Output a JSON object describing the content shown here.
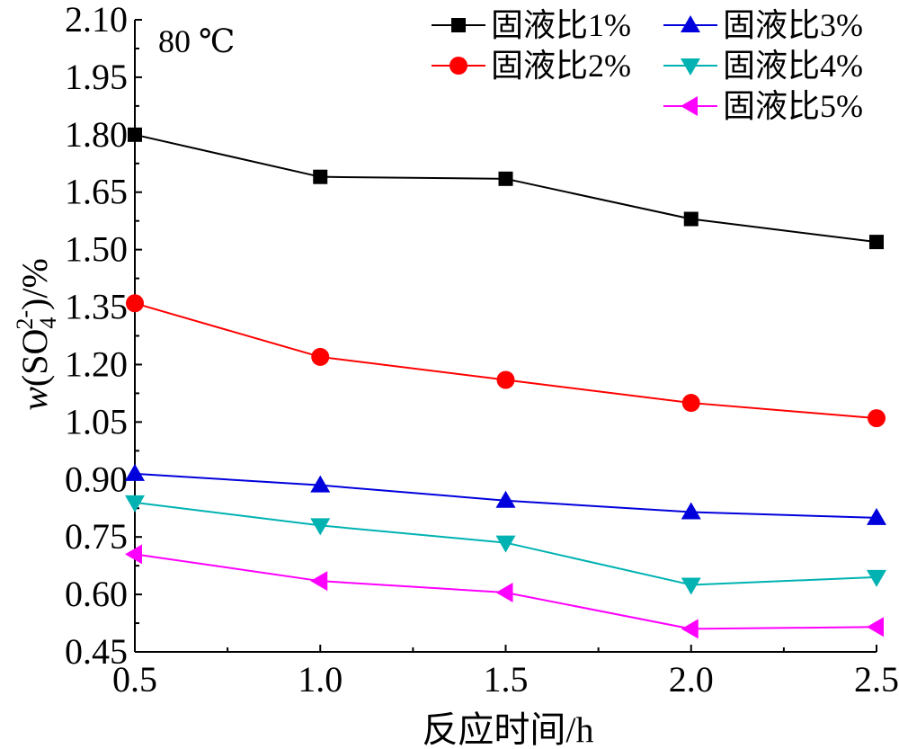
{
  "chart_data": {
    "type": "line",
    "annotation": "80 ℃",
    "xlabel": "反应时间/h",
    "ylabel": {
      "prefix": "w(SO",
      "sub": "4",
      "sup": "2-",
      "suffix": ")/%"
    },
    "x": [
      0.5,
      1.0,
      1.5,
      2.0,
      2.5
    ],
    "xlim": [
      0.5,
      2.5
    ],
    "ylim": [
      0.45,
      2.1
    ],
    "xticks": [
      "0.5",
      "1.0",
      "1.5",
      "2.0",
      "2.5"
    ],
    "yticks": [
      "0.45",
      "0.60",
      "0.75",
      "0.90",
      "1.05",
      "1.20",
      "1.35",
      "1.50",
      "1.65",
      "1.80",
      "1.95",
      "2.10"
    ],
    "grid": false,
    "legend_position": "top-right",
    "series": [
      {
        "name": "固液比1%",
        "color": "#000000",
        "marker": "square",
        "values": [
          1.8,
          1.69,
          1.685,
          1.58,
          1.52
        ]
      },
      {
        "name": "固液比2%",
        "color": "#ff0000",
        "marker": "circle",
        "values": [
          1.36,
          1.22,
          1.16,
          1.1,
          1.06
        ]
      },
      {
        "name": "固液比3%",
        "color": "#0000dd",
        "marker": "triangle-up",
        "values": [
          0.915,
          0.885,
          0.845,
          0.815,
          0.8
        ]
      },
      {
        "name": "固液比4%",
        "color": "#00b2b2",
        "marker": "triangle-down",
        "values": [
          0.84,
          0.78,
          0.735,
          0.625,
          0.645
        ]
      },
      {
        "name": "固液比5%",
        "color": "#ff00ff",
        "marker": "triangle-left",
        "values": [
          0.705,
          0.635,
          0.605,
          0.51,
          0.515
        ]
      }
    ]
  }
}
